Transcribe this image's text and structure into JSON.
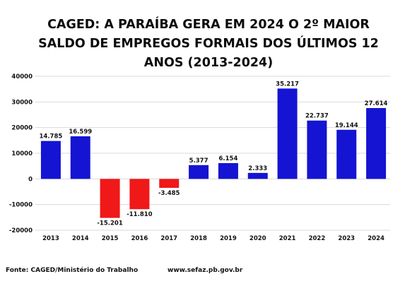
{
  "chart_data": {
    "type": "bar",
    "title_lines": [
      "CAGED: A PARAÍBA GERA EM 2024 O 2º MAIOR",
      "SALDO DE EMPREGOS FORMAIS DOS ÚLTIMOS 12",
      "ANOS (2013-2024)"
    ],
    "categories": [
      "2013",
      "2014",
      "2015",
      "2016",
      "2017",
      "2018",
      "2019",
      "2020",
      "2021",
      "2022",
      "2023",
      "2024"
    ],
    "values": [
      14785,
      16599,
      -15201,
      -11810,
      -3485,
      5377,
      6154,
      2333,
      35217,
      22737,
      19144,
      27614
    ],
    "value_labels": [
      "14.785",
      "16.599",
      "-15.201",
      "-11.810",
      "-3.485",
      "5.377",
      "6.154",
      "2.333",
      "35.217",
      "22.737",
      "19.144",
      "27.614"
    ],
    "ylim": [
      -20000,
      40000
    ],
    "yticks": [
      40000,
      30000,
      20000,
      10000,
      0,
      -10000,
      -20000
    ],
    "ytick_labels": [
      "40000",
      "30000",
      "20000",
      "10000",
      "0",
      "-10000",
      "-20000"
    ],
    "grid": true,
    "colors": {
      "positive": "#1414d2",
      "negative": "#f01818",
      "grid": "#d9d9d9"
    }
  },
  "footer": {
    "source": "Fonte: CAGED/Ministério do Trabalho",
    "website": "www.sefaz.pb.gov.br"
  }
}
